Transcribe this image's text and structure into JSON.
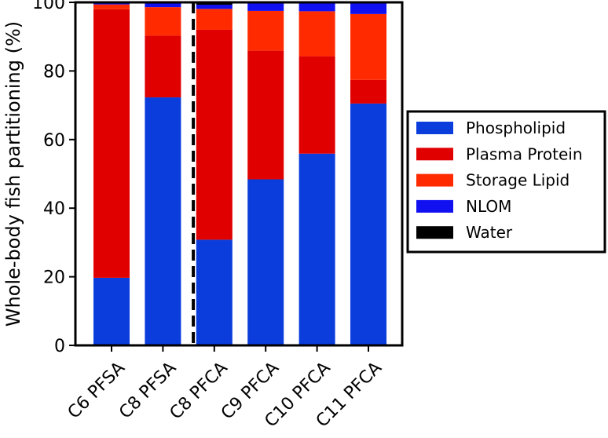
{
  "chart_data": {
    "type": "bar",
    "stacked": true,
    "categories": [
      "C6 PFSA",
      "C8 PFSA",
      "C8 PFCA",
      "C9 PFCA",
      "C10 PFCA",
      "C11 PFCA"
    ],
    "series": [
      {
        "name": "Phospholipid",
        "color": "#0a3ddb",
        "values": [
          19.7,
          72.3,
          30.8,
          48.4,
          55.9,
          70.5
        ]
      },
      {
        "name": "Plasma Protein",
        "color": "#e00000",
        "values": [
          78.3,
          18.0,
          61.2,
          37.5,
          28.4,
          6.9
        ]
      },
      {
        "name": "Storage Lipid",
        "color": "#ff2a00",
        "values": [
          1.4,
          8.3,
          6.1,
          11.6,
          13.1,
          19.2
        ]
      },
      {
        "name": "NLOM",
        "color": "#1010f0",
        "values": [
          0.5,
          1.3,
          1.2,
          2.3,
          2.5,
          3.3
        ]
      },
      {
        "name": "Water",
        "color": "#000000",
        "values": [
          0.1,
          0.1,
          0.7,
          0.2,
          0.1,
          0.1
        ]
      }
    ],
    "xlabel": "",
    "ylabel": "Whole-body fish partitioning (%)",
    "ylim": [
      0,
      100
    ],
    "yticks": [
      0,
      20,
      40,
      60,
      80,
      100
    ],
    "legend_position": "right",
    "divider_after_category": "C8 PFSA",
    "grid": false
  }
}
